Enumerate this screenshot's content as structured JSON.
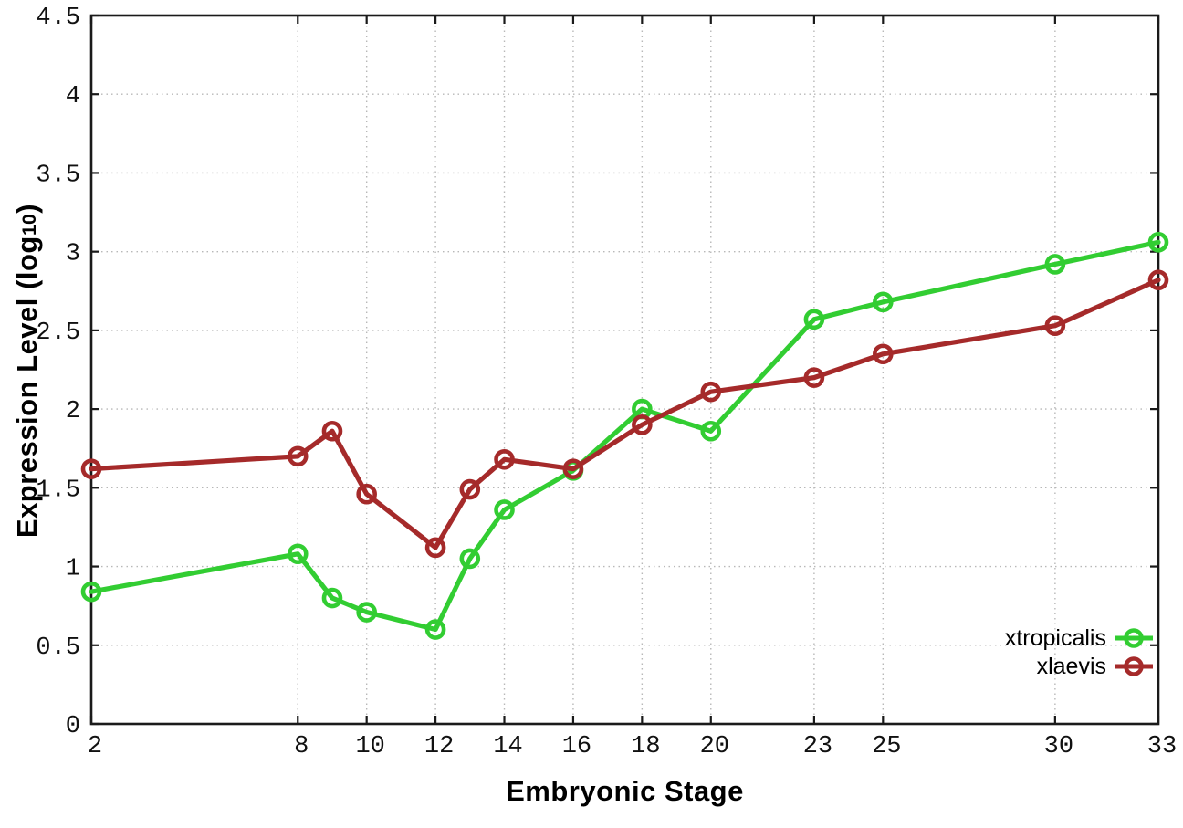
{
  "chart_data": {
    "type": "line",
    "title": "",
    "xlabel": "Embryonic Stage",
    "ylabel": "Expression Level (log10)",
    "ylabel_parts": {
      "prefix": "Expression Level (log",
      "sub": "10",
      "suffix": ")"
    },
    "x": [
      2,
      8,
      9,
      10,
      12,
      13,
      14,
      16,
      18,
      20,
      23,
      25,
      30,
      33
    ],
    "series": [
      {
        "name": "xtropicalis",
        "color": "#32cd32",
        "values": [
          0.84,
          1.08,
          0.8,
          0.71,
          0.6,
          1.05,
          1.36,
          1.61,
          2.0,
          1.86,
          2.57,
          2.68,
          2.92,
          3.06
        ]
      },
      {
        "name": "xlaevis",
        "color": "#a52a2a",
        "values": [
          1.62,
          1.7,
          1.86,
          1.46,
          1.12,
          1.49,
          1.68,
          1.62,
          1.9,
          2.11,
          2.2,
          2.35,
          2.53,
          2.82
        ]
      }
    ],
    "x_ticks": [
      2,
      8,
      10,
      12,
      14,
      16,
      18,
      20,
      23,
      25,
      30,
      33
    ],
    "y_ticks": [
      0,
      0.5,
      1,
      1.5,
      2,
      2.5,
      3,
      3.5,
      4,
      4.5
    ],
    "xlim": [
      2,
      33
    ],
    "ylim": [
      0,
      4.5
    ],
    "grid": true,
    "grid_style": "dotted",
    "marker": "open-circle",
    "legend_position": "inside-bottom-right",
    "colors": {
      "grid": "#b8b8b8",
      "border": "#1a1a1a",
      "text": "#111111",
      "background": "#ffffff"
    }
  }
}
